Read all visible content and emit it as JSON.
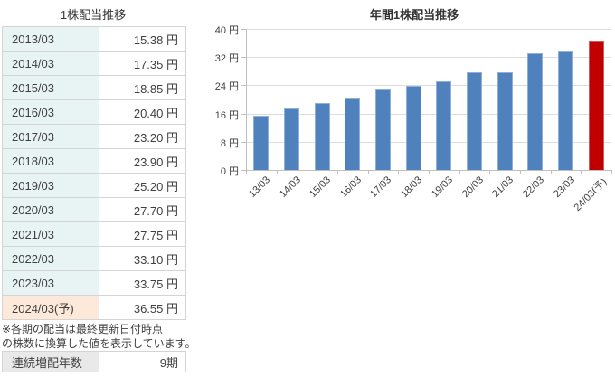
{
  "left_panel": {
    "title": "1株配当推移",
    "dividend_table": {
      "rows": [
        {
          "period": "2013/03",
          "value": "15.38 円",
          "highlight": false
        },
        {
          "period": "2014/03",
          "value": "17.35 円",
          "highlight": false
        },
        {
          "period": "2015/03",
          "value": "18.85 円",
          "highlight": false
        },
        {
          "period": "2016/03",
          "value": "20.40 円",
          "highlight": false
        },
        {
          "period": "2017/03",
          "value": "23.20 円",
          "highlight": false
        },
        {
          "period": "2018/03",
          "value": "23.90 円",
          "highlight": false
        },
        {
          "period": "2019/03",
          "value": "25.20 円",
          "highlight": false
        },
        {
          "period": "2020/03",
          "value": "27.70 円",
          "highlight": false
        },
        {
          "period": "2021/03",
          "value": "27.75 円",
          "highlight": false
        },
        {
          "period": "2022/03",
          "value": "33.10 円",
          "highlight": false
        },
        {
          "period": "2023/03",
          "value": "33.75 円",
          "highlight": false
        },
        {
          "period": "2024/03(予)",
          "value": "36.55 円",
          "highlight": true
        }
      ]
    },
    "note_lines": [
      "※各期の配当は最終更新日付時点",
      "の株数に換算した値を表示しています。"
    ],
    "summary_table": {
      "label": "連続増配年数",
      "value": "9期"
    }
  },
  "chart_data": {
    "type": "bar",
    "title": "年間1株配当推移",
    "categories": [
      "13/03",
      "14/03",
      "15/03",
      "16/03",
      "17/03",
      "18/03",
      "19/03",
      "20/03",
      "21/03",
      "22/03",
      "23/03",
      "24/03(予)"
    ],
    "values": [
      15.38,
      17.35,
      18.85,
      20.4,
      23.2,
      23.9,
      25.2,
      27.7,
      27.75,
      33.1,
      33.75,
      36.55
    ],
    "unit": "円",
    "ylim": [
      0,
      40
    ],
    "ytick_step": 8,
    "yticks": [
      {
        "v": 0,
        "label": "0 円"
      },
      {
        "v": 8,
        "label": "8 円"
      },
      {
        "v": 16,
        "label": "16 円"
      },
      {
        "v": 24,
        "label": "24 円"
      },
      {
        "v": 32,
        "label": "32 円"
      },
      {
        "v": 40,
        "label": "40 円"
      }
    ],
    "grid": true,
    "legend": "none",
    "bar_color": "#4f81bd",
    "bar_border_color": "#8fb0da",
    "highlight_index": 11,
    "highlight_bar_color": "#c00000",
    "highlight_bar_border_color": "#cf5a5a"
  },
  "colors": {
    "period_cell_bg": "#e8f3f4",
    "forecast_cell_bg": "#fce9d9",
    "summary_label_bg": "#e9e9e9",
    "table_border": "#d4d4d4",
    "grid_line": "#dcdcdc",
    "axis_line": "#bfbfbf",
    "text": "#3f3f3f"
  }
}
